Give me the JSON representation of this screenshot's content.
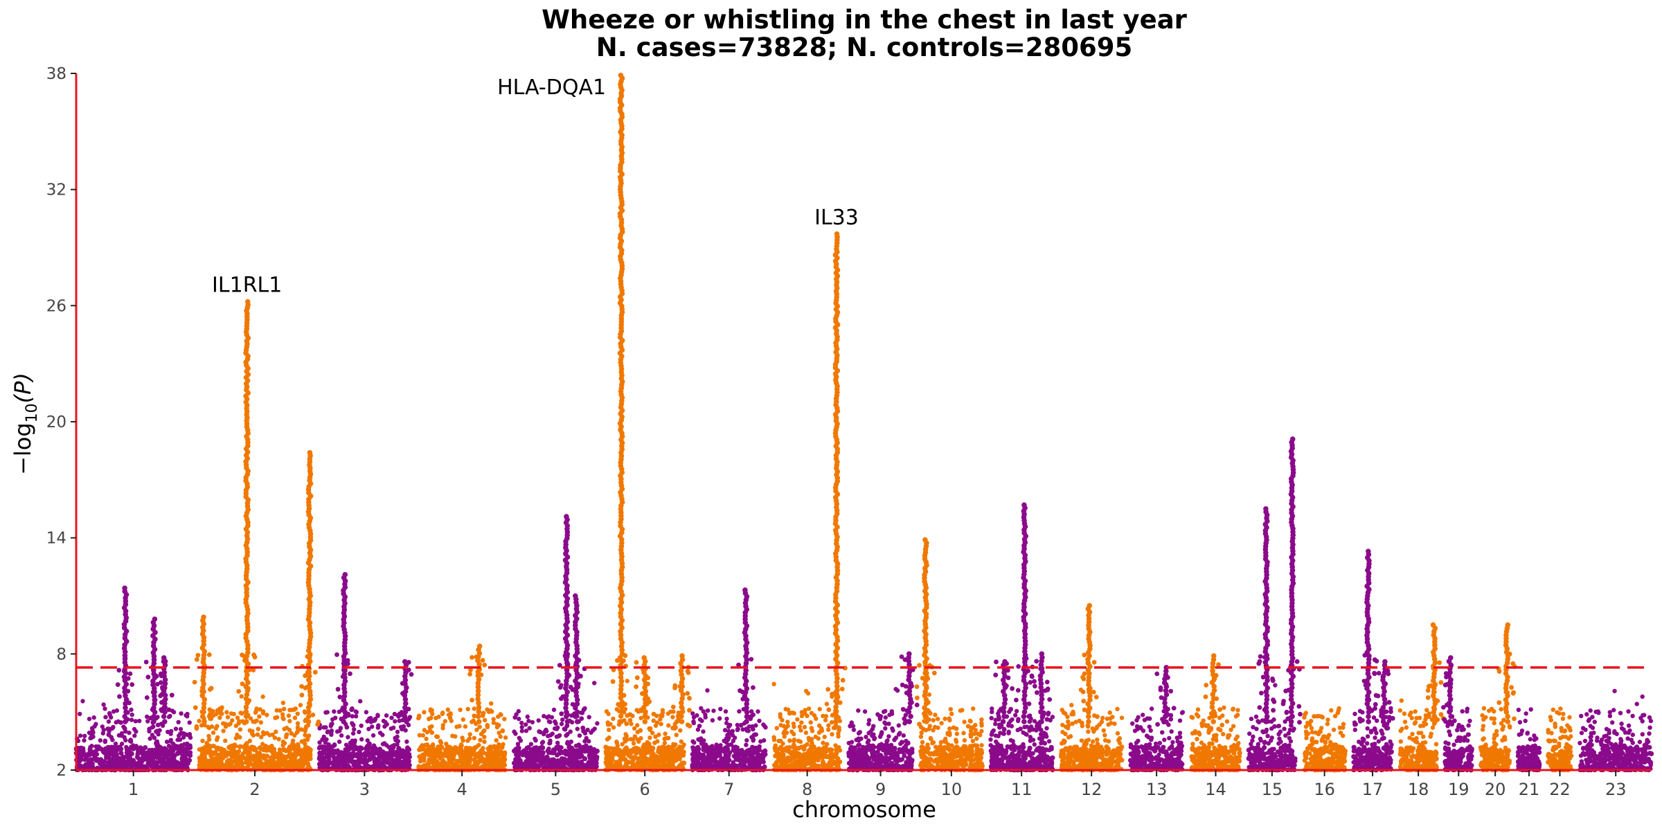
{
  "chart_data": {
    "type": "scatter",
    "subtype": "manhattan",
    "title": "Wheeze or whistling in the chest in last year",
    "subtitle": "N. cases=73828; N. controls=280695",
    "xlabel": "chromosome",
    "ylabel_prefix": "−log",
    "ylabel_sub": "10",
    "ylabel_suffix": "(P)",
    "ylim": [
      2,
      38
    ],
    "yticks": [
      2,
      8,
      14,
      20,
      26,
      32,
      38
    ],
    "significance_threshold": 7.3,
    "grid": false,
    "colors": {
      "odd": "#8B0A8B",
      "even": "#F07800",
      "threshold": "#E8141E",
      "axis": "#E8141E"
    },
    "chromosomes": [
      {
        "label": "1",
        "size": 249
      },
      {
        "label": "2",
        "size": 243
      },
      {
        "label": "3",
        "size": 198
      },
      {
        "label": "4",
        "size": 190
      },
      {
        "label": "5",
        "size": 181
      },
      {
        "label": "6",
        "size": 171
      },
      {
        "label": "7",
        "size": 159
      },
      {
        "label": "8",
        "size": 145
      },
      {
        "label": "9",
        "size": 138
      },
      {
        "label": "10",
        "size": 134
      },
      {
        "label": "11",
        "size": 135
      },
      {
        "label": "12",
        "size": 133
      },
      {
        "label": "13",
        "size": 114
      },
      {
        "label": "14",
        "size": 107
      },
      {
        "label": "15",
        "size": 102
      },
      {
        "label": "16",
        "size": 90
      },
      {
        "label": "17",
        "size": 83
      },
      {
        "label": "18",
        "size": 80
      },
      {
        "label": "19",
        "size": 59
      },
      {
        "label": "20",
        "size": 64
      },
      {
        "label": "21",
        "size": 47
      },
      {
        "label": "22",
        "size": 51
      },
      {
        "label": "23",
        "size": 156
      }
    ],
    "peaks": [
      {
        "chrom": "1",
        "pos": 0.43,
        "max_p": 11.4
      },
      {
        "chrom": "1",
        "pos": 0.68,
        "max_p": 9.8
      },
      {
        "chrom": "1",
        "pos": 0.77,
        "max_p": 7.8
      },
      {
        "chrom": "2",
        "pos": 0.04,
        "max_p": 9.9
      },
      {
        "chrom": "2",
        "pos": 0.43,
        "max_p": 26.2,
        "gene": "IL1RL1"
      },
      {
        "chrom": "2",
        "pos": 0.99,
        "max_p": 18.4
      },
      {
        "chrom": "3",
        "pos": 0.28,
        "max_p": 12.1
      },
      {
        "chrom": "3",
        "pos": 0.95,
        "max_p": 7.6
      },
      {
        "chrom": "4",
        "pos": 0.69,
        "max_p": 8.4
      },
      {
        "chrom": "5",
        "pos": 0.63,
        "max_p": 15.1
      },
      {
        "chrom": "5",
        "pos": 0.75,
        "max_p": 11.0
      },
      {
        "chrom": "6",
        "pos": 0.2,
        "max_p": 37.9,
        "gene": "HLA-DQA1"
      },
      {
        "chrom": "6",
        "pos": 0.5,
        "max_p": 7.8
      },
      {
        "chrom": "6",
        "pos": 0.97,
        "max_p": 7.9
      },
      {
        "chrom": "7",
        "pos": 0.73,
        "max_p": 11.3
      },
      {
        "chrom": "8",
        "pos": 0.94,
        "max_p": 29.7,
        "gene": "IL33"
      },
      {
        "chrom": "9",
        "pos": 0.96,
        "max_p": 8.0
      },
      {
        "chrom": "10",
        "pos": 0.08,
        "max_p": 13.9
      },
      {
        "chrom": "11",
        "pos": 0.22,
        "max_p": 7.6
      },
      {
        "chrom": "11",
        "pos": 0.55,
        "max_p": 15.7
      },
      {
        "chrom": "11",
        "pos": 0.82,
        "max_p": 8.0
      },
      {
        "chrom": "12",
        "pos": 0.46,
        "max_p": 10.5
      },
      {
        "chrom": "13",
        "pos": 0.67,
        "max_p": 7.3
      },
      {
        "chrom": "14",
        "pos": 0.45,
        "max_p": 7.9
      },
      {
        "chrom": "15",
        "pos": 0.38,
        "max_p": 15.5
      },
      {
        "chrom": "15",
        "pos": 0.93,
        "max_p": 19.1
      },
      {
        "chrom": "17",
        "pos": 0.38,
        "max_p": 13.3
      },
      {
        "chrom": "17",
        "pos": 0.8,
        "max_p": 7.6
      },
      {
        "chrom": "18",
        "pos": 0.93,
        "max_p": 9.5
      },
      {
        "chrom": "19",
        "pos": 0.18,
        "max_p": 7.8
      },
      {
        "chrom": "20",
        "pos": 0.9,
        "max_p": 9.5
      }
    ]
  }
}
